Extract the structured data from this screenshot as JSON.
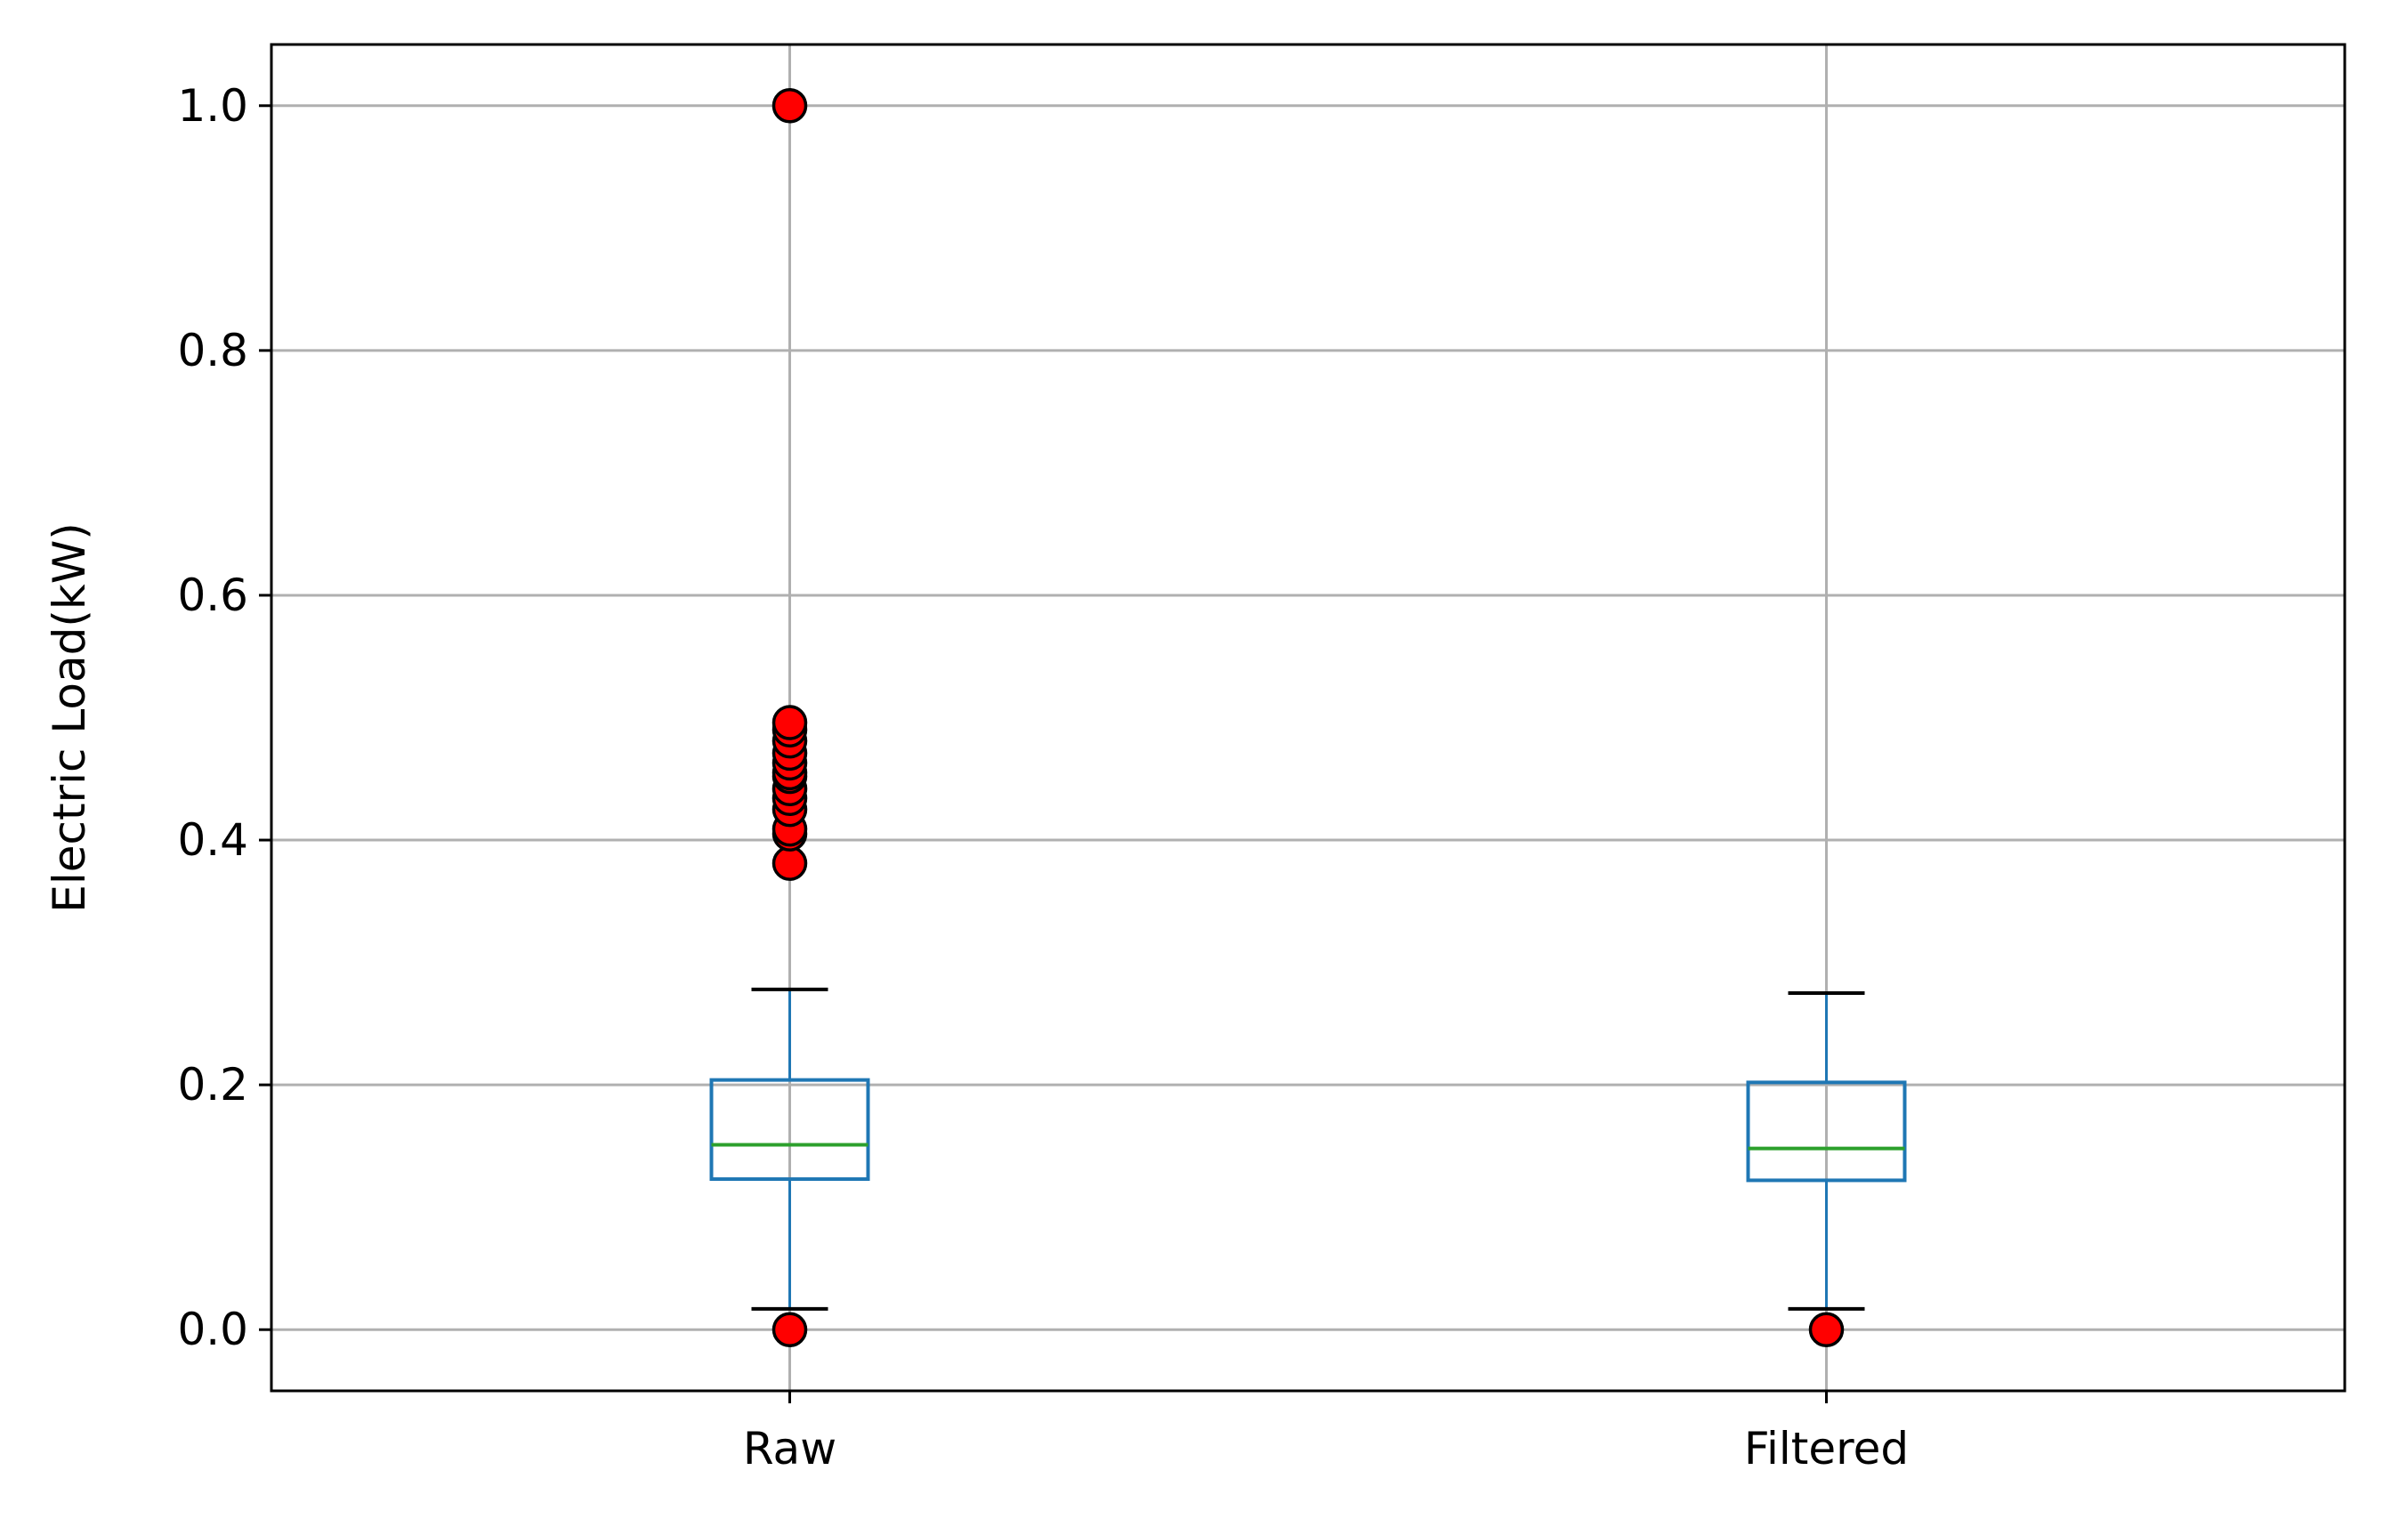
{
  "chart_data": {
    "type": "box",
    "categories": [
      "Raw",
      "Filtered"
    ],
    "ylabel": "Electric Load(kW)",
    "xlabel": "",
    "title": "",
    "ylim": [
      -0.05,
      1.05
    ],
    "yticks": [
      0.0,
      0.2,
      0.4,
      0.6,
      0.8,
      1.0
    ],
    "ytick_labels": [
      "0.0",
      "0.2",
      "0.4",
      "0.6",
      "0.8",
      "1.0"
    ],
    "grid": true,
    "boxes": [
      {
        "name": "Raw",
        "whisker_low": 0.017,
        "q1": 0.123,
        "median": 0.151,
        "q3": 0.204,
        "whisker_high": 0.278,
        "outliers": [
          0.0,
          0.381,
          0.405,
          0.409,
          0.425,
          0.434,
          0.442,
          0.452,
          0.455,
          0.463,
          0.471,
          0.481,
          0.49,
          0.496,
          1.0
        ]
      },
      {
        "name": "Filtered",
        "whisker_low": 0.017,
        "q1": 0.122,
        "median": 0.148,
        "q3": 0.202,
        "whisker_high": 0.275,
        "outliers": [
          0.0
        ]
      }
    ],
    "colors": {
      "box": "#1f77b4",
      "median": "#2ca02c",
      "cap": "#000000",
      "outlier_fill": "#ff0000",
      "outlier_edge": "#000000",
      "grid": "#b0b0b0"
    }
  }
}
